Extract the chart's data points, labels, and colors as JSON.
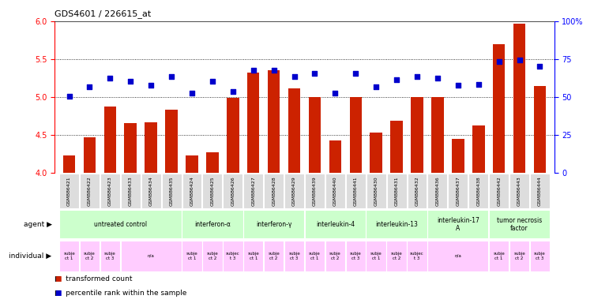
{
  "title": "GDS4601 / 226615_at",
  "samples": [
    "GSM886421",
    "GSM886422",
    "GSM886423",
    "GSM886433",
    "GSM886434",
    "GSM886435",
    "GSM886424",
    "GSM886425",
    "GSM886426",
    "GSM886427",
    "GSM886428",
    "GSM886429",
    "GSM886439",
    "GSM886440",
    "GSM886441",
    "GSM886430",
    "GSM886431",
    "GSM886432",
    "GSM886436",
    "GSM886437",
    "GSM886438",
    "GSM886442",
    "GSM886443",
    "GSM886444"
  ],
  "bar_values": [
    4.23,
    4.47,
    4.87,
    4.65,
    4.67,
    4.83,
    4.23,
    4.27,
    4.99,
    5.32,
    5.35,
    5.11,
    5.0,
    4.43,
    5.0,
    4.53,
    4.69,
    5.0,
    5.0,
    4.45,
    4.62,
    5.7,
    5.97,
    5.14
  ],
  "percentile_values": [
    50.5,
    56.5,
    62.5,
    60.5,
    57.5,
    63.5,
    52.5,
    60.5,
    53.5,
    67.5,
    67.5,
    63.5,
    65.5,
    52.5,
    65.5,
    56.5,
    61.5,
    63.5,
    62.5,
    57.5,
    58.5,
    73.5,
    74.5,
    70.5
  ],
  "ylim_left": [
    4.0,
    6.0
  ],
  "ylim_right": [
    0,
    100
  ],
  "bar_color": "#cc2200",
  "scatter_color": "#0000cc",
  "bg_color": "#ffffff",
  "xlabels_bg": "#cccccc",
  "group_color": "#ccffcc",
  "indiv_color": "#ffccff",
  "groups": [
    {
      "label": "untreated control",
      "start": 0,
      "end": 5
    },
    {
      "label": "interferon-α",
      "start": 6,
      "end": 8
    },
    {
      "label": "interferon-γ",
      "start": 9,
      "end": 11
    },
    {
      "label": "interleukin-4",
      "start": 12,
      "end": 14
    },
    {
      "label": "interleukin-13",
      "start": 15,
      "end": 17
    },
    {
      "label": "interleukin-17\nA",
      "start": 18,
      "end": 20
    },
    {
      "label": "tumor necrosis\nfactor",
      "start": 21,
      "end": 23
    }
  ],
  "individuals": [
    {
      "label": "subje\nct 1",
      "start": 0,
      "end": 0
    },
    {
      "label": "subje\nct 2",
      "start": 1,
      "end": 1
    },
    {
      "label": "subje\nct 3",
      "start": 2,
      "end": 2
    },
    {
      "label": "n/a",
      "start": 3,
      "end": 5
    },
    {
      "label": "subje\nct 1",
      "start": 6,
      "end": 6
    },
    {
      "label": "subje\nct 2",
      "start": 7,
      "end": 7
    },
    {
      "label": "subjec\nt 3",
      "start": 8,
      "end": 8
    },
    {
      "label": "subje\nct 1",
      "start": 9,
      "end": 9
    },
    {
      "label": "subje\nct 2",
      "start": 10,
      "end": 10
    },
    {
      "label": "subje\nct 3",
      "start": 11,
      "end": 11
    },
    {
      "label": "subje\nct 1",
      "start": 12,
      "end": 12
    },
    {
      "label": "subje\nct 2",
      "start": 13,
      "end": 13
    },
    {
      "label": "subje\nct 3",
      "start": 14,
      "end": 14
    },
    {
      "label": "subje\nct 1",
      "start": 15,
      "end": 15
    },
    {
      "label": "subje\nct 2",
      "start": 16,
      "end": 16
    },
    {
      "label": "subjec\nt 3",
      "start": 17,
      "end": 17
    },
    {
      "label": "n/a",
      "start": 18,
      "end": 20
    },
    {
      "label": "subje\nct 1",
      "start": 21,
      "end": 21
    },
    {
      "label": "subje\nct 2",
      "start": 22,
      "end": 22
    },
    {
      "label": "subje\nct 3",
      "start": 23,
      "end": 23
    }
  ]
}
